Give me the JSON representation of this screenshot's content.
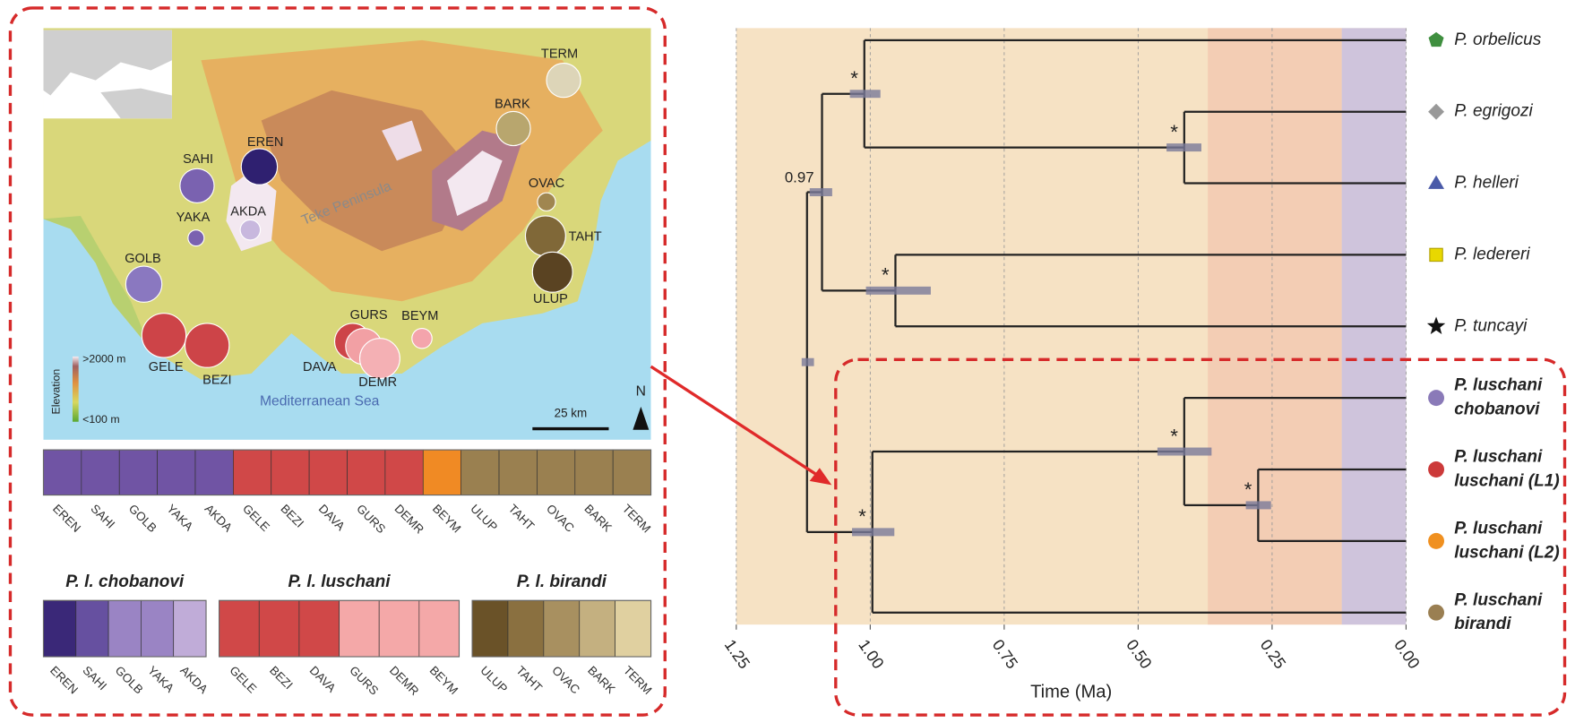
{
  "map": {
    "sites": [
      {
        "label": "TERM",
        "color": "#ddd5b8"
      },
      {
        "label": "BARK",
        "color": "#b8a66e"
      },
      {
        "label": "EREN",
        "color": "#2f2070"
      },
      {
        "label": "SAHI",
        "color": "#7a62b0"
      },
      {
        "label": "OVAC",
        "color": "#a08650"
      },
      {
        "label": "AKDA",
        "color": "#c8b8de"
      },
      {
        "label": "YAKA",
        "color": "#7a62b0"
      },
      {
        "label": "TAHT",
        "color": "#806838"
      },
      {
        "label": "ULUP",
        "color": "#5a4322"
      },
      {
        "label": "GOLB",
        "color": "#8a78c0"
      },
      {
        "label": "GELE",
        "color": "#cd4448"
      },
      {
        "label": "BEZI",
        "color": "#cd4448"
      },
      {
        "label": "DAVA",
        "color": "#cd4448"
      },
      {
        "label": "GURS",
        "color": "#f2a0a4"
      },
      {
        "label": "DEMR",
        "color": "#f4b0b4"
      },
      {
        "label": "BEYM",
        "color": "#f4a4ac"
      }
    ],
    "region": "Teke Peninsula",
    "sea": "Mediterranean Sea",
    "legend": {
      "title": "Elevation",
      "high": ">2000 m",
      "low": "<100 m"
    },
    "scale": "25 km",
    "north": "N"
  },
  "structure": {
    "all": [
      {
        "label": "EREN",
        "color": "#7054a4"
      },
      {
        "label": "SAHI",
        "color": "#7054a4"
      },
      {
        "label": "GOLB",
        "color": "#7054a4"
      },
      {
        "label": "YAKA",
        "color": "#7054a4"
      },
      {
        "label": "AKDA",
        "color": "#7054a4"
      },
      {
        "label": "GELE",
        "color": "#d04848"
      },
      {
        "label": "BEZI",
        "color": "#d04848"
      },
      {
        "label": "DAVA",
        "color": "#d04848"
      },
      {
        "label": "GURS",
        "color": "#d04848"
      },
      {
        "label": "DEMR",
        "color": "#d04848"
      },
      {
        "label": "BEYM",
        "color": "#f08a24"
      },
      {
        "label": "ULUP",
        "color": "#9a8050"
      },
      {
        "label": "TAHT",
        "color": "#9a8050"
      },
      {
        "label": "OVAC",
        "color": "#9a8050"
      },
      {
        "label": "BARK",
        "color": "#9a8050"
      },
      {
        "label": "TERM",
        "color": "#9a8050"
      }
    ],
    "groups": [
      {
        "title": "P. l. chobanovi",
        "populations": [
          {
            "label": "EREN",
            "color": "#3a2878"
          },
          {
            "label": "SAHI",
            "color": "#6650a0"
          },
          {
            "label": "GOLB",
            "color": "#9a84c4"
          },
          {
            "label": "YAKA",
            "color": "#9a84c4"
          },
          {
            "label": "AKDA",
            "color": "#c0acd8"
          }
        ]
      },
      {
        "title": "P. l. luschani",
        "populations": [
          {
            "label": "GELE",
            "color": "#d04848"
          },
          {
            "label": "BEZI",
            "color": "#d04848"
          },
          {
            "label": "DAVA",
            "color": "#d04848"
          },
          {
            "label": "GURS",
            "color": "#f4a8a8"
          },
          {
            "label": "DEMR",
            "color": "#f4a8a8"
          },
          {
            "label": "BEYM",
            "color": "#f4a8a8"
          }
        ]
      },
      {
        "title": "P. l. birandi",
        "populations": [
          {
            "label": "ULUP",
            "color": "#6a5228"
          },
          {
            "label": "TAHT",
            "color": "#8a7040"
          },
          {
            "label": "OVAC",
            "color": "#a89060"
          },
          {
            "label": "BARK",
            "color": "#c4b080"
          },
          {
            "label": "TERM",
            "color": "#e0d0a0"
          }
        ]
      }
    ]
  },
  "chart_data": {
    "type": "tree",
    "xlabel": "Time (Ma)",
    "xlim": [
      1.25,
      0
    ],
    "xticks": [
      1.25,
      {
        "value": 1,
        "label": "1.00"
      },
      0.75,
      {
        "value": 0.5,
        "label": "0.50"
      },
      0.25,
      {
        "value": 0,
        "label": "0.00"
      }
    ],
    "grid": true,
    "background": "#f6e2c4",
    "bands": [
      {
        "range": [
          0.37,
          0.12
        ],
        "color": "#f3cdb4"
      },
      {
        "range": [
          0.12,
          0
        ],
        "color": "#cfc4dc"
      }
    ],
    "tips": [
      {
        "name": [
          "P. orbelicus"
        ],
        "marker": "pentagon",
        "color": "#3f8f3f",
        "bold": false
      },
      {
        "name": [
          "P. egrigozi"
        ],
        "marker": "diamond",
        "color": "#999999",
        "bold": false
      },
      {
        "name": [
          "P. helleri"
        ],
        "marker": "triangle",
        "color": "#4a5aa8",
        "bold": false
      },
      {
        "name": [
          "P. ledereri"
        ],
        "marker": "square",
        "color": "#e8d800",
        "bold": false
      },
      {
        "name": [
          "P. tuncayi"
        ],
        "marker": "star",
        "color": "#111111",
        "bold": false
      },
      {
        "name": [
          "P. luschani",
          "chobanovi"
        ],
        "marker": "circle",
        "color": "#8a7ab8",
        "bold": true
      },
      {
        "name": [
          "P. luschani",
          "luschani (L1)"
        ],
        "marker": "circle",
        "color": "#cc3a3a",
        "bold": true
      },
      {
        "name": [
          "P. luschani",
          "luschani (L2)"
        ],
        "marker": "circle",
        "color": "#f09020",
        "bold": true
      },
      {
        "name": [
          "P. luschani",
          "birandi"
        ],
        "marker": "circle",
        "color": "#9a7f52",
        "bold": true
      }
    ],
    "nodes": [
      {
        "age": 1.118,
        "hpd": [
          1.105,
          1.128
        ],
        "children": [
          10,
          14
        ]
      },
      {
        "age": 1.09,
        "hpd": [
          1.071,
          1.113
        ],
        "children": [
          11,
          13
        ],
        "support": 0.97
      },
      {
        "age": 1.011,
        "hpd": [
          0.981,
          1.038
        ],
        "children": [
          0,
          12
        ],
        "support": "*"
      },
      {
        "age": 0.414,
        "hpd": [
          0.382,
          0.447
        ],
        "children": [
          1,
          2
        ],
        "support": "*"
      },
      {
        "age": 0.953,
        "hpd": [
          0.887,
          1.008
        ],
        "children": [
          3,
          4
        ],
        "support": "*"
      },
      {
        "age": 0.996,
        "hpd": [
          0.955,
          1.034
        ],
        "children": [
          15,
          8
        ],
        "support": "*"
      },
      {
        "age": 0.414,
        "hpd": [
          0.363,
          0.464
        ],
        "children": [
          5,
          16
        ],
        "support": "*"
      },
      {
        "age": 0.276,
        "hpd": [
          0.252,
          0.299
        ],
        "children": [
          6,
          7
        ],
        "support": "*"
      }
    ]
  }
}
